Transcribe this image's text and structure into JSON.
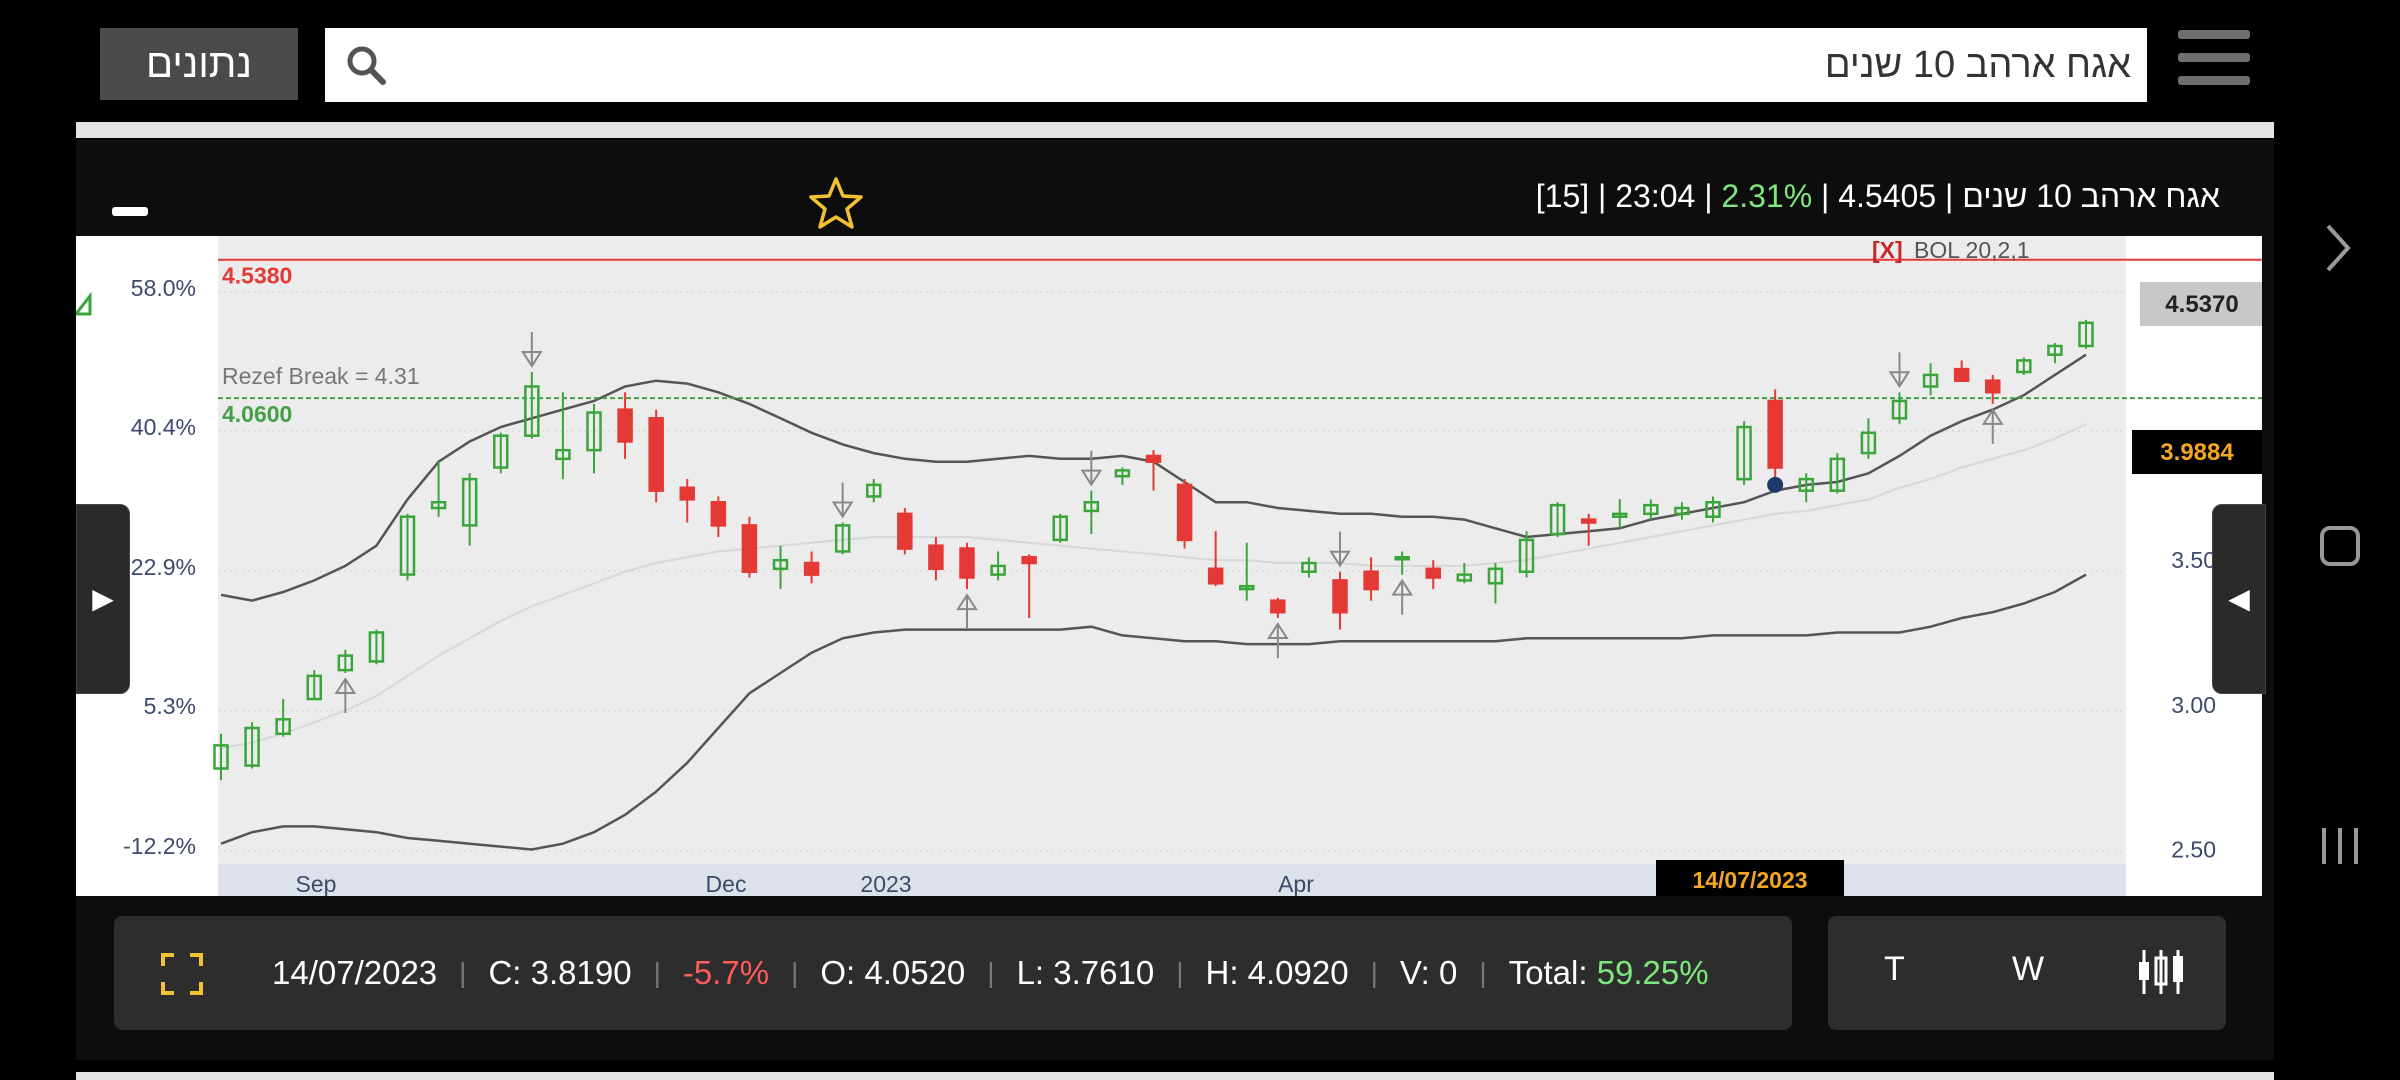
{
  "search": {
    "query": "אגח ארהב 10 שנים",
    "data_button": "נתונים"
  },
  "header": {
    "name": "אגח ארהב 10 שנים",
    "price": "4.5405",
    "change": "2.31%",
    "time": "23:04",
    "interval": "[15]"
  },
  "indicator": {
    "remove": "[X]",
    "label": "BOL 20,2,1"
  },
  "chart_data": {
    "type": "candlestick",
    "x_labels": [
      "Sep",
      "Dec",
      "2023",
      "Apr"
    ],
    "left_axis_labels": [
      "58.0%",
      "40.4%",
      "22.9%",
      "5.3%",
      "-12.2%"
    ],
    "right_axis_labels": [
      "3.50",
      "3.00",
      "2.50"
    ],
    "price_tags": {
      "last": "4.5370",
      "current": "3.9884",
      "cursor_date": "14/07/2023"
    },
    "lines": {
      "resistance": {
        "label": "4.5380",
        "value": 4.538,
        "color": "#e53935"
      },
      "support": {
        "label": "4.0600",
        "value": 4.06,
        "color": "#43a047"
      }
    },
    "annotation": "Rezef Break = 4.31",
    "candles": [
      {
        "o": 2.78,
        "h": 2.9,
        "l": 2.74,
        "c": 2.86
      },
      {
        "o": 2.79,
        "h": 2.94,
        "l": 2.78,
        "c": 2.92
      },
      {
        "o": 2.9,
        "h": 3.02,
        "l": 2.89,
        "c": 2.95
      },
      {
        "o": 3.02,
        "h": 3.12,
        "l": 3.02,
        "c": 3.1
      },
      {
        "o": 3.12,
        "h": 3.19,
        "l": 3.11,
        "c": 3.17
      },
      {
        "o": 3.15,
        "h": 3.26,
        "l": 3.14,
        "c": 3.25
      },
      {
        "o": 3.45,
        "h": 3.66,
        "l": 3.43,
        "c": 3.65
      },
      {
        "o": 3.68,
        "h": 3.84,
        "l": 3.65,
        "c": 3.7
      },
      {
        "o": 3.62,
        "h": 3.8,
        "l": 3.55,
        "c": 3.78
      },
      {
        "o": 3.82,
        "h": 3.94,
        "l": 3.8,
        "c": 3.93
      },
      {
        "o": 3.93,
        "h": 4.15,
        "l": 3.92,
        "c": 4.1
      },
      {
        "o": 3.85,
        "h": 4.08,
        "l": 3.78,
        "c": 3.88
      },
      {
        "o": 3.88,
        "h": 4.04,
        "l": 3.8,
        "c": 4.01
      },
      {
        "o": 4.02,
        "h": 4.08,
        "l": 3.85,
        "c": 3.91
      },
      {
        "o": 3.99,
        "h": 4.02,
        "l": 3.7,
        "c": 3.74
      },
      {
        "o": 3.75,
        "h": 3.78,
        "l": 3.63,
        "c": 3.71
      },
      {
        "o": 3.7,
        "h": 3.72,
        "l": 3.58,
        "c": 3.62
      },
      {
        "o": 3.62,
        "h": 3.65,
        "l": 3.44,
        "c": 3.46
      },
      {
        "o": 3.47,
        "h": 3.55,
        "l": 3.4,
        "c": 3.5
      },
      {
        "o": 3.49,
        "h": 3.53,
        "l": 3.42,
        "c": 3.45
      },
      {
        "o": 3.53,
        "h": 3.63,
        "l": 3.52,
        "c": 3.62
      },
      {
        "o": 3.72,
        "h": 3.78,
        "l": 3.7,
        "c": 3.76
      },
      {
        "o": 3.66,
        "h": 3.68,
        "l": 3.52,
        "c": 3.54
      },
      {
        "o": 3.55,
        "h": 3.58,
        "l": 3.43,
        "c": 3.47
      },
      {
        "o": 3.54,
        "h": 3.56,
        "l": 3.4,
        "c": 3.44
      },
      {
        "o": 3.45,
        "h": 3.53,
        "l": 3.43,
        "c": 3.48
      },
      {
        "o": 3.51,
        "h": 3.52,
        "l": 3.3,
        "c": 3.49
      },
      {
        "o": 3.57,
        "h": 3.66,
        "l": 3.56,
        "c": 3.65
      },
      {
        "o": 3.67,
        "h": 3.74,
        "l": 3.59,
        "c": 3.7
      },
      {
        "o": 3.79,
        "h": 3.82,
        "l": 3.76,
        "c": 3.81
      },
      {
        "o": 3.86,
        "h": 3.88,
        "l": 3.74,
        "c": 3.84
      },
      {
        "o": 3.76,
        "h": 3.78,
        "l": 3.54,
        "c": 3.57
      },
      {
        "o": 3.47,
        "h": 3.6,
        "l": 3.41,
        "c": 3.42
      },
      {
        "o": 3.4,
        "h": 3.56,
        "l": 3.36,
        "c": 3.41
      },
      {
        "o": 3.36,
        "h": 3.37,
        "l": 3.3,
        "c": 3.32
      },
      {
        "o": 3.46,
        "h": 3.51,
        "l": 3.44,
        "c": 3.49
      },
      {
        "o": 3.43,
        "h": 3.46,
        "l": 3.26,
        "c": 3.32
      },
      {
        "o": 3.46,
        "h": 3.51,
        "l": 3.36,
        "c": 3.4
      },
      {
        "o": 3.51,
        "h": 3.53,
        "l": 3.45,
        "c": 3.51
      },
      {
        "o": 3.47,
        "h": 3.5,
        "l": 3.4,
        "c": 3.44
      },
      {
        "o": 3.43,
        "h": 3.49,
        "l": 3.42,
        "c": 3.45
      },
      {
        "o": 3.42,
        "h": 3.49,
        "l": 3.35,
        "c": 3.47
      },
      {
        "o": 3.46,
        "h": 3.6,
        "l": 3.44,
        "c": 3.57
      },
      {
        "o": 3.59,
        "h": 3.7,
        "l": 3.58,
        "c": 3.69
      },
      {
        "o": 3.64,
        "h": 3.66,
        "l": 3.55,
        "c": 3.63
      },
      {
        "o": 3.65,
        "h": 3.71,
        "l": 3.61,
        "c": 3.66
      },
      {
        "o": 3.66,
        "h": 3.71,
        "l": 3.64,
        "c": 3.69
      },
      {
        "o": 3.66,
        "h": 3.7,
        "l": 3.64,
        "c": 3.68
      },
      {
        "o": 3.65,
        "h": 3.72,
        "l": 3.63,
        "c": 3.7
      },
      {
        "o": 3.78,
        "h": 3.98,
        "l": 3.76,
        "c": 3.96
      },
      {
        "o": 4.05,
        "h": 4.09,
        "l": 3.76,
        "c": 3.82
      },
      {
        "o": 3.74,
        "h": 3.8,
        "l": 3.7,
        "c": 3.78
      },
      {
        "o": 3.74,
        "h": 3.87,
        "l": 3.73,
        "c": 3.85
      },
      {
        "o": 3.87,
        "h": 3.99,
        "l": 3.85,
        "c": 3.94
      },
      {
        "o": 3.99,
        "h": 4.08,
        "l": 3.97,
        "c": 4.05
      },
      {
        "o": 4.1,
        "h": 4.18,
        "l": 4.07,
        "c": 4.14
      },
      {
        "o": 4.16,
        "h": 4.19,
        "l": 4.12,
        "c": 4.12
      },
      {
        "o": 4.12,
        "h": 4.14,
        "l": 4.04,
        "c": 4.08
      },
      {
        "o": 4.15,
        "h": 4.2,
        "l": 4.14,
        "c": 4.19
      },
      {
        "o": 4.21,
        "h": 4.25,
        "l": 4.18,
        "c": 4.24
      },
      {
        "o": 4.24,
        "h": 4.33,
        "l": 4.23,
        "c": 4.32
      }
    ],
    "arrows": [
      {
        "i": 10,
        "dir": "down"
      },
      {
        "i": 4,
        "dir": "up"
      },
      {
        "i": 20,
        "dir": "down"
      },
      {
        "i": 24,
        "dir": "up"
      },
      {
        "i": 28,
        "dir": "down"
      },
      {
        "i": 34,
        "dir": "up"
      },
      {
        "i": 36,
        "dir": "down"
      },
      {
        "i": 38,
        "dir": "up"
      },
      {
        "i": 54,
        "dir": "down"
      },
      {
        "i": 57,
        "dir": "up"
      }
    ],
    "bollinger": {
      "upper": [
        3.38,
        3.36,
        3.39,
        3.43,
        3.48,
        3.55,
        3.71,
        3.84,
        3.91,
        3.96,
        3.99,
        4.02,
        4.05,
        4.1,
        4.12,
        4.11,
        4.08,
        4.04,
        3.99,
        3.94,
        3.9,
        3.87,
        3.85,
        3.84,
        3.84,
        3.85,
        3.86,
        3.85,
        3.85,
        3.86,
        3.84,
        3.77,
        3.7,
        3.7,
        3.68,
        3.67,
        3.66,
        3.66,
        3.65,
        3.65,
        3.64,
        3.61,
        3.58,
        3.59,
        3.6,
        3.61,
        3.64,
        3.66,
        3.68,
        3.7,
        3.74,
        3.76,
        3.77,
        3.8,
        3.86,
        3.93,
        3.98,
        4.02,
        4.07,
        4.14,
        4.21
      ],
      "middle": [
        2.85,
        2.87,
        2.9,
        2.94,
        2.98,
        3.03,
        3.1,
        3.17,
        3.23,
        3.29,
        3.34,
        3.38,
        3.42,
        3.46,
        3.49,
        3.51,
        3.53,
        3.54,
        3.55,
        3.56,
        3.57,
        3.58,
        3.58,
        3.58,
        3.58,
        3.57,
        3.56,
        3.55,
        3.54,
        3.53,
        3.52,
        3.51,
        3.5,
        3.5,
        3.49,
        3.49,
        3.49,
        3.48,
        3.48,
        3.48,
        3.48,
        3.49,
        3.5,
        3.52,
        3.54,
        3.56,
        3.58,
        3.6,
        3.62,
        3.64,
        3.66,
        3.67,
        3.69,
        3.71,
        3.75,
        3.78,
        3.82,
        3.85,
        3.88,
        3.92,
        3.97
      ],
      "lower": [
        2.52,
        2.56,
        2.58,
        2.58,
        2.57,
        2.56,
        2.54,
        2.53,
        2.52,
        2.51,
        2.5,
        2.52,
        2.56,
        2.62,
        2.7,
        2.8,
        2.92,
        3.04,
        3.11,
        3.18,
        3.23,
        3.25,
        3.26,
        3.26,
        3.26,
        3.26,
        3.26,
        3.26,
        3.27,
        3.24,
        3.23,
        3.22,
        3.22,
        3.21,
        3.21,
        3.21,
        3.22,
        3.22,
        3.22,
        3.22,
        3.22,
        3.22,
        3.23,
        3.23,
        3.23,
        3.23,
        3.23,
        3.23,
        3.24,
        3.24,
        3.24,
        3.24,
        3.25,
        3.25,
        3.25,
        3.27,
        3.3,
        3.32,
        3.35,
        3.39,
        3.45
      ]
    },
    "colors": {
      "up": "#3aa53a",
      "down": "#e53935",
      "band": "#555555",
      "mid": "#d8d8d8"
    }
  },
  "info": {
    "date": "14/07/2023",
    "close": "C: 3.8190",
    "change": "-5.7%",
    "open": "O: 4.0520",
    "low": "L: 3.7610",
    "high": "H: 4.0920",
    "volume": "V: 0",
    "total_label": "Total:",
    "total_value": "59.25%"
  },
  "timeframes": {
    "t": "T",
    "w": "W"
  }
}
